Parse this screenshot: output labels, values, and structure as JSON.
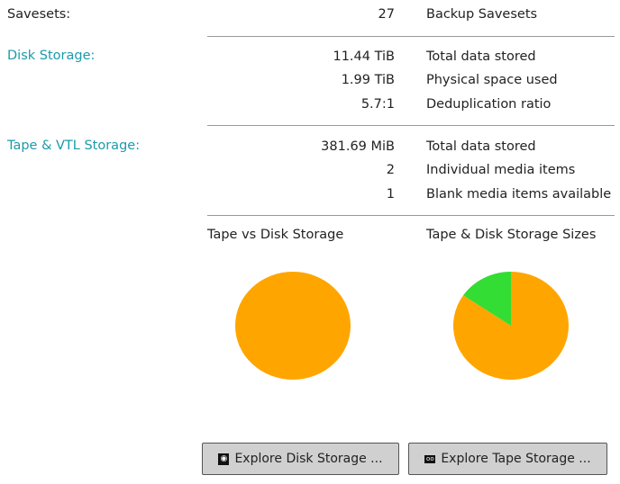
{
  "savesets": {
    "label": "Savesets:",
    "value": "27",
    "desc": "Backup Savesets"
  },
  "disk": {
    "label": "Disk Storage:",
    "rows": [
      {
        "value": "11.44 TiB",
        "desc": "Total data stored"
      },
      {
        "value": "1.99 TiB",
        "desc": "Physical space used"
      },
      {
        "value": "5.7:1",
        "desc": "Deduplication ratio"
      }
    ]
  },
  "tape": {
    "label": "Tape & VTL Storage:",
    "rows": [
      {
        "value": "381.69 MiB",
        "desc": "Total data stored"
      },
      {
        "value": "2",
        "desc": "Individual media items"
      },
      {
        "value": "1",
        "desc": "Blank media items available"
      }
    ]
  },
  "colors": {
    "accent": "#1b9bab",
    "orange": "#FFA500",
    "green": "#33DD33"
  },
  "chart_data": [
    {
      "type": "pie",
      "title": "Tape vs Disk Storage",
      "values": [
        100,
        0.0
      ]
    },
    {
      "type": "pie",
      "title": "Tape & Disk Storage Sizes",
      "values": [
        84.5,
        15.5
      ]
    }
  ],
  "buttons": {
    "disk": {
      "label": "Explore Disk Storage ...",
      "icon": "hard-disk-icon"
    },
    "tape": {
      "label": "Explore Tape Storage ...",
      "icon": "tape-icon"
    }
  }
}
